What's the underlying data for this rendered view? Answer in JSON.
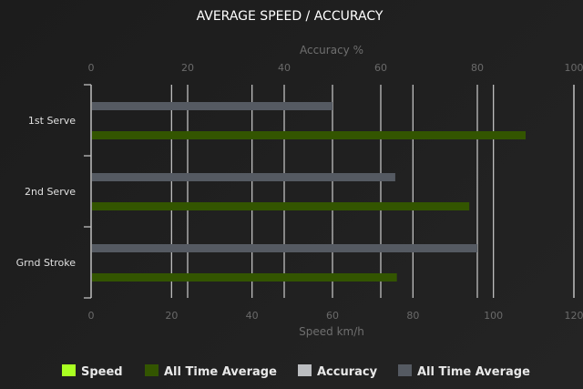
{
  "chart_data": {
    "type": "bar",
    "orientation": "horizontal",
    "title": "AVERAGE SPEED / ACCURACY",
    "categories": [
      "1st Serve",
      "2nd Serve",
      "Grnd Stroke"
    ],
    "top_axis": {
      "label": "Accuracy %",
      "range": [
        0,
        100
      ],
      "ticks": [
        0,
        20,
        40,
        60,
        80,
        100
      ]
    },
    "bottom_axis": {
      "label": "Speed km/h",
      "range": [
        0,
        120
      ],
      "ticks": [
        0,
        20,
        40,
        60,
        80,
        100,
        120
      ]
    },
    "grid": true,
    "legend_position": "bottom",
    "series": [
      {
        "name": "Speed",
        "axis": "bottom",
        "color": "#aaff22",
        "values": [
          null,
          null,
          null
        ]
      },
      {
        "name": "All Time Average",
        "axis": "bottom",
        "color": "#335500",
        "values": [
          108,
          94,
          76
        ]
      },
      {
        "name": "Accuracy",
        "axis": "top",
        "color": "#bbbdc0",
        "values": [
          null,
          null,
          null
        ]
      },
      {
        "name": "All Time Average",
        "axis": "top",
        "color": "#555a62",
        "values": [
          50,
          63,
          80
        ]
      }
    ]
  }
}
